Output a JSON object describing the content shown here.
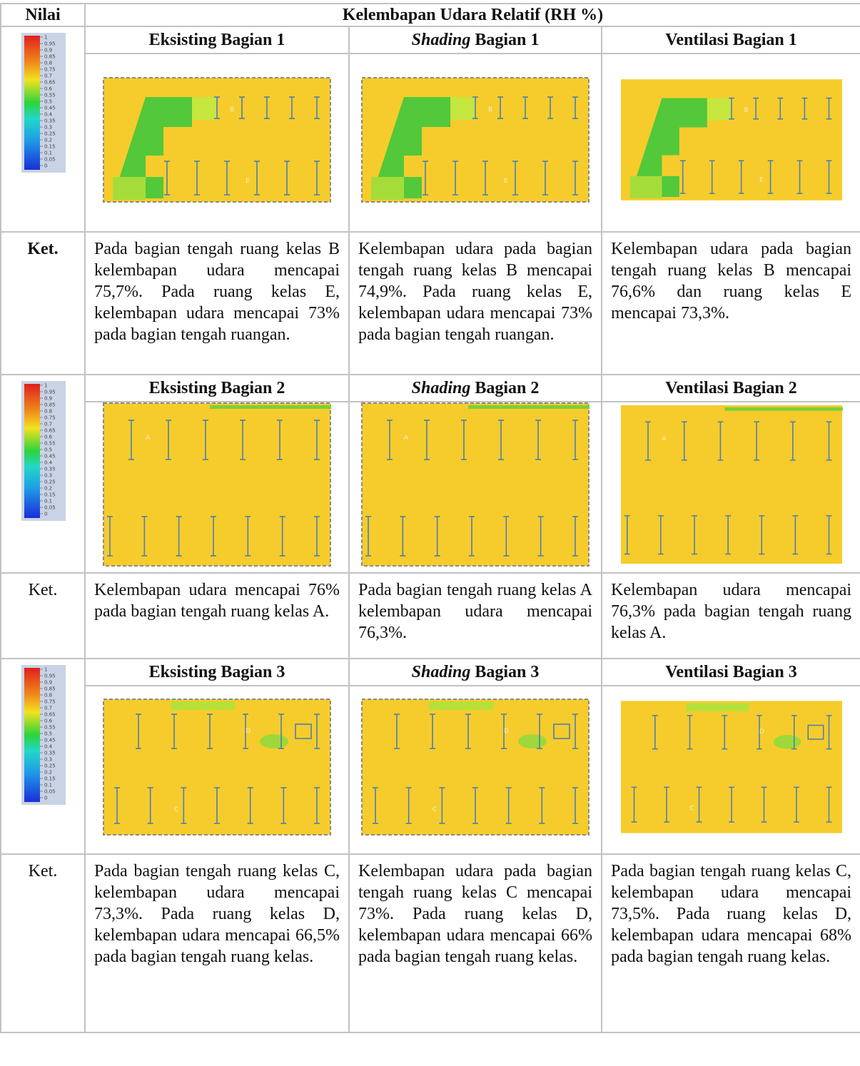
{
  "header": {
    "nilai": "Nilai",
    "title": "Kelembapan Udara Relatif (RH %)"
  },
  "colorbar_ticks": [
    "1",
    "0.95",
    "0.9",
    "0.85",
    "0.8",
    "0.75",
    "0.7",
    "0.65",
    "0.6",
    "0.55",
    "0.5",
    "0.45",
    "0.4",
    "0.35",
    "0.3",
    "0.25",
    "0.2",
    "0.15",
    "0.1",
    "0.05",
    "0"
  ],
  "sections": [
    {
      "ket_label": "Ket.",
      "ket_bold": true,
      "room_labels": [
        "B",
        "E"
      ],
      "titles": [
        {
          "text": "Eksisting Bagian 1"
        },
        {
          "em": "Shading",
          "text": "Bagian 1"
        },
        {
          "text": "Ventilasi Bagian 1"
        }
      ],
      "notes": [
        "Pada bagian tengah ruang kelas B kelembapan udara mencapai 75,7%. Pada ruang kelas E, kelembapan udara mencapai 73% pada bagian tengah ruangan.",
        "Kelembapan udara pada bagian tengah ruang kelas B mencapai 74,9%. Pada ruang kelas E, kelembapan udara mencapai 73% pada bagian tengah ruangan.",
        "Kelembapan udara pada bagian tengah ruang kelas B mencapai 76,6% dan ruang kelas E mencapai 73,3%."
      ]
    },
    {
      "ket_label": "Ket.",
      "ket_bold": false,
      "room_labels": [
        "A"
      ],
      "titles": [
        {
          "text": "Eksisting Bagian 2"
        },
        {
          "em": "Shading",
          "text": "Bagian 2"
        },
        {
          "text": "Ventilasi Bagian 2"
        }
      ],
      "notes": [
        "Kelembapan udara mencapai 76% pada bagian tengah ruang kelas A.",
        "Pada bagian tengah ruang kelas A kelembapan udara mencapai 76,3%.",
        "Kelembapan udara mencapai 76,3% pada bagian tengah ruang kelas A."
      ]
    },
    {
      "ket_label": "Ket.",
      "ket_bold": false,
      "room_labels": [
        "D",
        "C"
      ],
      "titles": [
        {
          "text": "Eksisting Bagian 3"
        },
        {
          "em": "Shading",
          "text": "Bagian 3"
        },
        {
          "text": "Ventilasi Bagian 3"
        }
      ],
      "notes": [
        "Pada bagian tengah ruang kelas C, kelembapan udara mencapai 73,3%. Pada ruang kelas D, kelembapan udara mencapai 66,5% pada bagian tengah ruang kelas.",
        "Kelembapan udara pada bagian tengah ruang kelas C mencapai 73%. Pada ruang kelas D, kelembapan udara mencapai 66% pada bagian tengah ruang kelas.",
        "Pada bagian tengah ruang kelas C, kelembapan udara mencapai 73,5%. Pada ruang kelas D, kelembapan udara mencapai 68% pada bagian tengah ruang kelas."
      ]
    }
  ]
}
